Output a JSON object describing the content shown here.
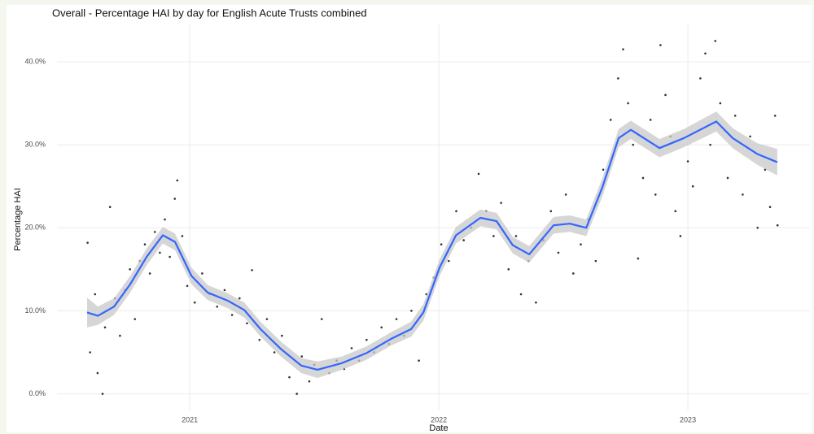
{
  "chart_data": {
    "type": "scatter_smooth",
    "title": "Overall - Percentage HAI by day for English Acute Trusts combined",
    "xlabel": "Date",
    "ylabel": "Percentage HAI",
    "xlim": [
      2020.467,
      2023.49
    ],
    "xticks": [
      2021,
      2022,
      2023
    ],
    "ylim": [
      -2,
      44.5
    ],
    "yticks": [
      {
        "value": 0,
        "label": "0.0%"
      },
      {
        "value": 10,
        "label": "10.0%"
      },
      {
        "value": 20,
        "label": "20.0%"
      },
      {
        "value": 30,
        "label": "30.0%"
      },
      {
        "value": 40,
        "label": "40.0%"
      }
    ],
    "grid": true,
    "point_color": "#333333",
    "line_color": "#3366ff",
    "band_color": "#c8c8c8",
    "x": [
      2020.59,
      2020.6,
      2020.62,
      2020.63,
      2020.65,
      2020.66,
      2020.68,
      2020.7,
      2020.72,
      2020.74,
      2020.76,
      2020.78,
      2020.8,
      2020.82,
      2020.84,
      2020.86,
      2020.88,
      2020.9,
      2020.92,
      2020.94,
      2020.95,
      2020.97,
      2020.99,
      2021.02,
      2021.05,
      2021.08,
      2021.11,
      2021.14,
      2021.17,
      2021.2,
      2021.23,
      2021.25,
      2021.28,
      2021.31,
      2021.34,
      2021.37,
      2021.4,
      2021.43,
      2021.45,
      2021.48,
      2021.5,
      2021.53,
      2021.56,
      2021.59,
      2021.62,
      2021.65,
      2021.68,
      2021.71,
      2021.74,
      2021.77,
      2021.8,
      2021.83,
      2021.86,
      2021.89,
      2021.92,
      2021.95,
      2021.98,
      2022.01,
      2022.04,
      2022.07,
      2022.1,
      2022.13,
      2022.16,
      2022.19,
      2022.22,
      2022.25,
      2022.28,
      2022.31,
      2022.33,
      2022.36,
      2022.39,
      2022.42,
      2022.45,
      2022.48,
      2022.51,
      2022.54,
      2022.57,
      2022.6,
      2022.63,
      2022.66,
      2022.69,
      2022.72,
      2022.74,
      2022.76,
      2022.78,
      2022.8,
      2022.82,
      2022.85,
      2022.87,
      2022.89,
      2022.91,
      2022.93,
      2022.95,
      2022.97,
      2023.0,
      2023.02,
      2023.05,
      2023.07,
      2023.09,
      2023.11,
      2023.13,
      2023.16,
      2023.19,
      2023.22,
      2023.25,
      2023.28,
      2023.31,
      2023.33,
      2023.35,
      2023.36
    ],
    "values": [
      18.2,
      5.0,
      12.0,
      2.5,
      0,
      8.0,
      22.5,
      11.5,
      7.0,
      12.5,
      15.0,
      9.0,
      16.0,
      18.0,
      14.5,
      19.5,
      17.0,
      21.0,
      16.5,
      23.5,
      25.7,
      19.0,
      13.0,
      11.0,
      14.5,
      12.0,
      10.5,
      12.5,
      9.5,
      11.5,
      8.5,
      14.9,
      6.5,
      9.0,
      5.0,
      7.0,
      2.0,
      0,
      4.5,
      1.5,
      3.5,
      9.0,
      2.5,
      4.0,
      3.0,
      5.5,
      4.0,
      6.5,
      5.0,
      8.0,
      6.0,
      9.0,
      7.0,
      10.0,
      4.0,
      12.0,
      14.0,
      18.0,
      16.0,
      22.0,
      18.5,
      20.0,
      26.5,
      22.0,
      19.0,
      23.0,
      15.0,
      19.0,
      12.0,
      16.0,
      11.0,
      18.5,
      22.0,
      17.0,
      24.0,
      14.5,
      18.0,
      21.0,
      16.0,
      27.0,
      33.0,
      38.0,
      41.5,
      35.0,
      30.0,
      16.3,
      26.0,
      33.0,
      24.0,
      42.0,
      36.0,
      31.0,
      22.0,
      19.0,
      28.0,
      25.0,
      38.0,
      41.0,
      30.0,
      42.5,
      35.0,
      26.0,
      33.5,
      24.0,
      31.0,
      20.0,
      27.0,
      22.5,
      33.5,
      20.3
    ],
    "smooth_x": [
      2020.588,
      2020.631,
      2020.696,
      2020.761,
      2020.827,
      2020.892,
      2020.941,
      2021.007,
      2021.072,
      2021.154,
      2021.219,
      2021.284,
      2021.366,
      2021.448,
      2021.513,
      2021.611,
      2021.709,
      2021.807,
      2021.889,
      2021.938,
      2022.003,
      2022.069,
      2022.167,
      2022.232,
      2022.297,
      2022.363,
      2022.461,
      2022.526,
      2022.592,
      2022.657,
      2022.722,
      2022.771,
      2022.886,
      2022.984,
      2023.114,
      2023.18,
      2023.278,
      2023.359
    ],
    "smooth": [
      9.8,
      9.4,
      10.5,
      13.2,
      16.5,
      19.1,
      18.3,
      14.2,
      12.2,
      11.2,
      10.1,
      7.8,
      5.4,
      3.4,
      2.9,
      3.7,
      4.9,
      6.6,
      7.8,
      9.8,
      15.2,
      19.1,
      21.2,
      20.8,
      17.9,
      16.8,
      20.3,
      20.5,
      20.0,
      24.9,
      30.8,
      31.8,
      29.6,
      30.8,
      32.8,
      30.8,
      28.9,
      27.9
    ],
    "band_lower": [
      8.0,
      8.3,
      9.5,
      12.2,
      15.5,
      18.1,
      17.3,
      13.2,
      11.3,
      10.3,
      9.2,
      6.9,
      4.5,
      2.5,
      1.9,
      2.9,
      4.1,
      5.8,
      6.9,
      8.8,
      14.2,
      18.1,
      20.2,
      19.8,
      16.9,
      15.8,
      19.3,
      19.5,
      19.0,
      23.8,
      29.7,
      30.7,
      28.5,
      29.7,
      31.6,
      29.6,
      27.6,
      26.3
    ],
    "band_upper": [
      11.6,
      10.5,
      11.5,
      14.2,
      17.5,
      20.1,
      19.3,
      15.2,
      13.1,
      12.1,
      11.0,
      8.7,
      6.3,
      4.3,
      3.9,
      4.5,
      5.7,
      7.4,
      8.7,
      10.8,
      16.2,
      20.1,
      22.2,
      21.8,
      18.9,
      17.8,
      21.3,
      21.5,
      21.0,
      26.0,
      31.9,
      32.9,
      30.7,
      31.9,
      34.0,
      32.0,
      30.2,
      29.5
    ]
  }
}
